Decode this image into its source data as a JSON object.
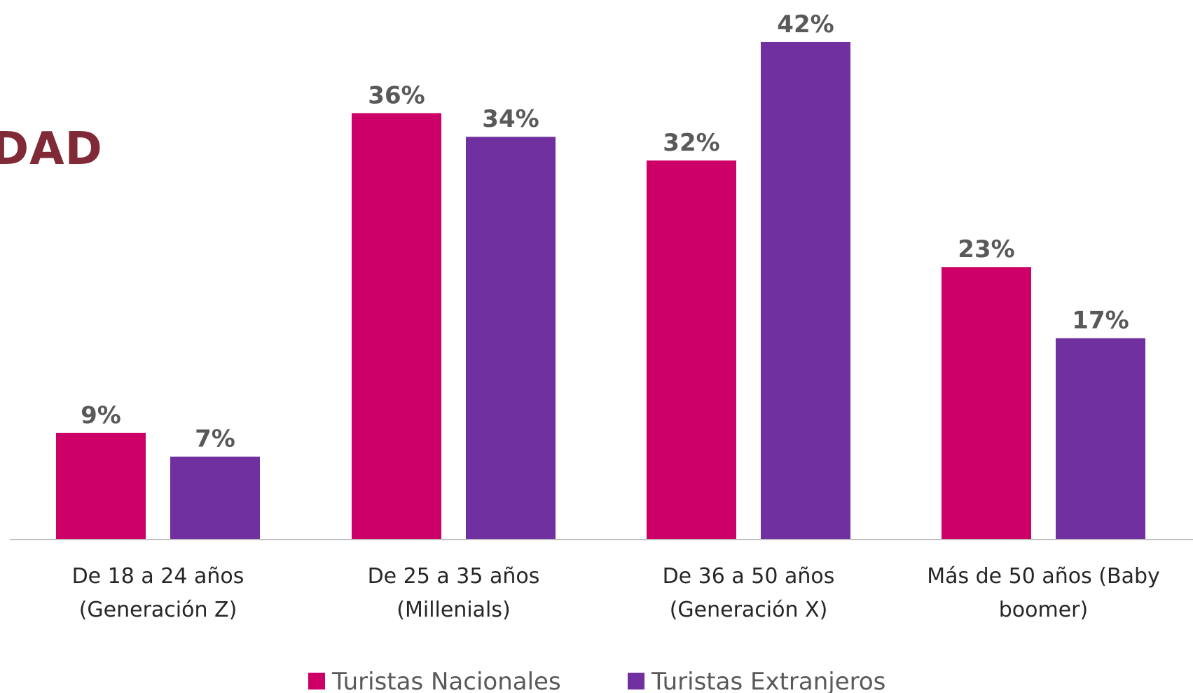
{
  "header": {
    "title_fragment": "DAD"
  },
  "colors": {
    "nacionales": "#cc0066",
    "extranjeros": "#7030a0",
    "axis": "#bfbfbf"
  },
  "chart_data": {
    "type": "bar",
    "categories": [
      [
        "De 18 a 24 años",
        "(Generación Z)"
      ],
      [
        "De 25 a 35 años",
        "(Millenials)"
      ],
      [
        "De 36 a 50 años",
        "(Generación X)"
      ],
      [
        "Más de 50 años (Baby",
        "boomer)"
      ]
    ],
    "series": [
      {
        "name": "Turistas Nacionales",
        "values": [
          9,
          36,
          32,
          23
        ],
        "labels": [
          "9%",
          "36%",
          "32%",
          "23%"
        ],
        "color": "#cc0066"
      },
      {
        "name": "Turistas Extranjeros",
        "values": [
          7,
          34,
          42,
          17
        ],
        "labels": [
          "7%",
          "34%",
          "42%",
          "17%"
        ],
        "color": "#7030a0"
      }
    ],
    "ylim": [
      0,
      42
    ],
    "legend_position": "bottom",
    "grid": false
  }
}
